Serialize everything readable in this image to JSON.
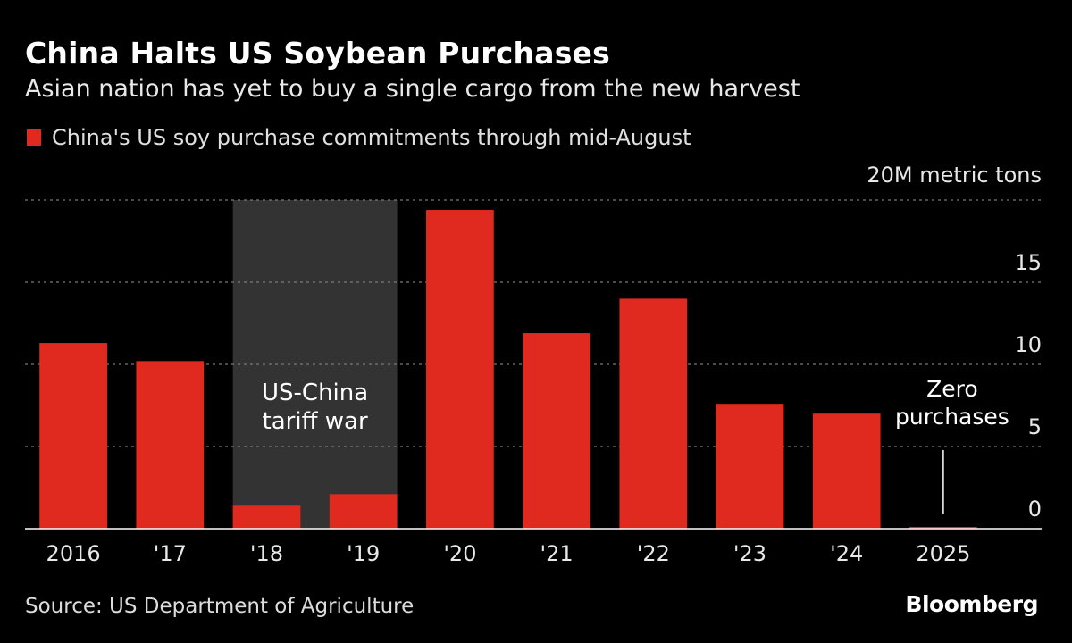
{
  "header": {
    "title": "China Halts US Soybean Purchases",
    "subtitle": "Asian nation has yet to buy a single cargo from the new harvest"
  },
  "legend": {
    "label": "China's US soy purchase commitments through mid-August"
  },
  "chart_data": {
    "type": "bar",
    "categories": [
      "2016",
      "'17",
      "'18",
      "'19",
      "'20",
      "'21",
      "'22",
      "'23",
      "'24",
      "2025"
    ],
    "values": [
      11.3,
      10.2,
      1.4,
      2.1,
      19.4,
      11.9,
      14.0,
      7.6,
      7.0,
      0
    ],
    "series_name": "China's US soy purchase commitments through mid-August",
    "y_unit_label": "20M metric tons",
    "y_ticks": [
      0,
      5,
      10,
      15,
      20
    ],
    "y_tick_labels": [
      "0",
      "5",
      "10",
      "15",
      "20M metric tons"
    ],
    "ylim": [
      0,
      20
    ],
    "bar_color": "#e02a20",
    "grid": true,
    "highlight_band": {
      "from_category": "'18",
      "to_category": "'19",
      "label_line1": "US-China",
      "label_line2": "tariff war",
      "color": "#333333"
    },
    "annotation": {
      "category": "2025",
      "line1": "Zero",
      "line2": "purchases"
    }
  },
  "footer": {
    "source": "Source: US Department of Agriculture",
    "brand": "Bloomberg"
  }
}
